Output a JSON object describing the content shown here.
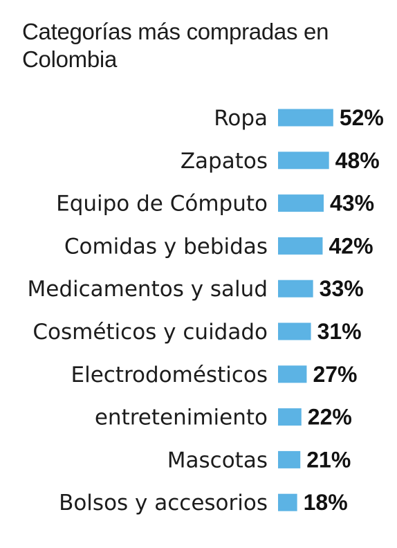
{
  "chart_data": {
    "type": "bar",
    "orientation": "horizontal",
    "title": "Categorías más compradas en Colombia",
    "categories": [
      "Ropa",
      "Zapatos",
      "Equipo de Cómputo",
      "Comidas y bebidas",
      "Medicamentos y salud",
      "Cosméticos y cuidado",
      "Electrodomésticos",
      "entretenimiento",
      "Mascotas",
      "Bolsos y accesorios"
    ],
    "values": [
      52,
      48,
      43,
      42,
      33,
      31,
      27,
      22,
      21,
      18
    ],
    "value_labels": [
      "52%",
      "48%",
      "43%",
      "42%",
      "33%",
      "31%",
      "27%",
      "22%",
      "21%",
      "18%"
    ],
    "unit": "%",
    "bar_color": "#5cb3e4",
    "grid": false,
    "legend": "none"
  }
}
